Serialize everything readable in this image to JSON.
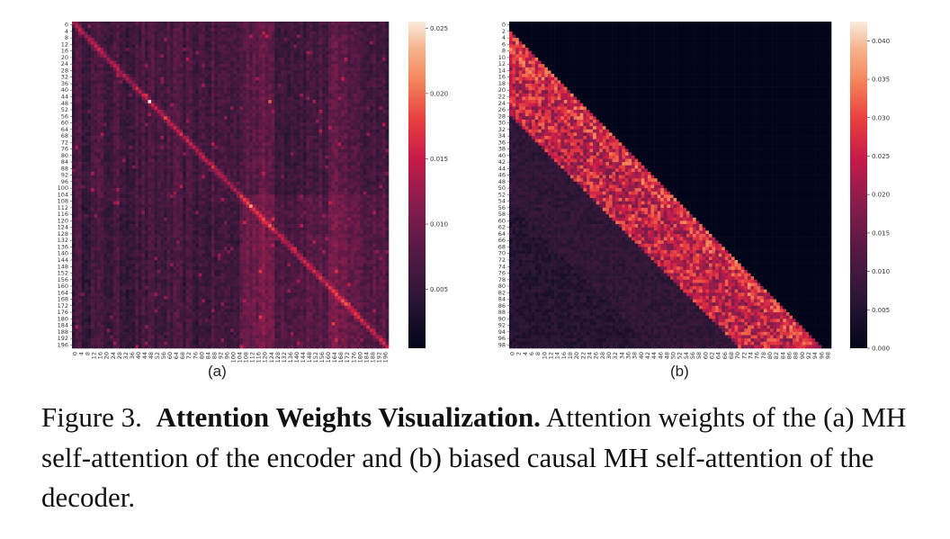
{
  "figure": {
    "panels": [
      {
        "id": "a",
        "label": "(a)",
        "y_ticks": [
          "0",
          "4",
          "8",
          "12",
          "16",
          "20",
          "24",
          "28",
          "32",
          "36",
          "40",
          "44",
          "48",
          "52",
          "56",
          "60",
          "64",
          "68",
          "72",
          "76",
          "80",
          "84",
          "88",
          "92",
          "96",
          "100",
          "104",
          "108",
          "112",
          "116",
          "120",
          "124",
          "128",
          "132",
          "136",
          "140",
          "144",
          "148",
          "152",
          "156",
          "160",
          "164",
          "168",
          "172",
          "176",
          "180",
          "184",
          "188",
          "192",
          "196"
        ],
        "x_ticks": [
          "0",
          "4",
          "8",
          "12",
          "16",
          "20",
          "24",
          "28",
          "32",
          "36",
          "40",
          "44",
          "48",
          "52",
          "56",
          "60",
          "64",
          "68",
          "72",
          "76",
          "80",
          "84",
          "88",
          "92",
          "96",
          "100",
          "104",
          "108",
          "112",
          "116",
          "120",
          "124",
          "128",
          "132",
          "136",
          "140",
          "144",
          "148",
          "152",
          "156",
          "160",
          "164",
          "168",
          "172",
          "176",
          "180",
          "184",
          "188",
          "192",
          "196"
        ],
        "colorbar_ticks": [
          "0.005",
          "0.010",
          "0.015",
          "0.020",
          "0.025"
        ],
        "colorbar_range": [
          0.0005,
          0.0255
        ]
      },
      {
        "id": "b",
        "label": "(b)",
        "y_ticks": [
          "0",
          "2",
          "4",
          "6",
          "8",
          "10",
          "12",
          "14",
          "16",
          "18",
          "20",
          "22",
          "24",
          "26",
          "28",
          "30",
          "32",
          "34",
          "36",
          "38",
          "40",
          "42",
          "44",
          "46",
          "48",
          "50",
          "52",
          "54",
          "56",
          "58",
          "60",
          "62",
          "64",
          "66",
          "68",
          "70",
          "72",
          "74",
          "76",
          "78",
          "80",
          "82",
          "84",
          "86",
          "88",
          "90",
          "92",
          "94",
          "96",
          "98"
        ],
        "x_ticks": [
          "0",
          "2",
          "4",
          "6",
          "8",
          "10",
          "12",
          "14",
          "16",
          "18",
          "20",
          "22",
          "24",
          "26",
          "28",
          "30",
          "32",
          "34",
          "36",
          "38",
          "40",
          "42",
          "44",
          "46",
          "48",
          "50",
          "52",
          "54",
          "56",
          "58",
          "60",
          "62",
          "64",
          "66",
          "68",
          "70",
          "72",
          "74",
          "76",
          "78",
          "80",
          "82",
          "84",
          "86",
          "88",
          "90",
          "92",
          "94",
          "96",
          "98"
        ],
        "colorbar_ticks": [
          "0.000",
          "0.005",
          "0.010",
          "0.015",
          "0.020",
          "0.025",
          "0.030",
          "0.035",
          "0.040"
        ],
        "colorbar_range": [
          0.0,
          0.0425
        ]
      }
    ]
  },
  "caption": {
    "prefix": "Figure 3.",
    "title": "Attention Weights Visualization.",
    "text": "Attention weights of the (a) MH self-attention of the encoder and (b) biased causal MH self-attention of the decoder."
  }
}
